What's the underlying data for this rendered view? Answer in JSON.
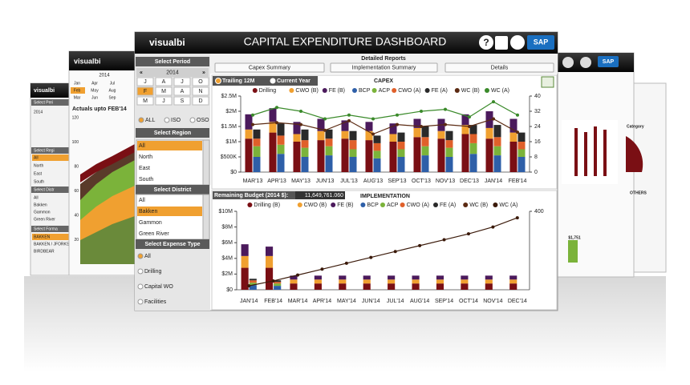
{
  "header": {
    "logo": "visualbi",
    "title": "CAPITAL EXPENDITURE DASHBOARD",
    "help": "?",
    "sap": "SAP"
  },
  "sidebar": {
    "period": {
      "title": "Select Period",
      "prev": "«",
      "year": "2014",
      "next": "»",
      "months": [
        "J",
        "A",
        "J",
        "O",
        "F",
        "M",
        "A",
        "N",
        "M",
        "J",
        "S",
        "D"
      ],
      "options": [
        "ALL",
        "ISO",
        "OSO"
      ]
    },
    "region": {
      "title": "Select Region",
      "items": [
        "All",
        "North",
        "East",
        "South"
      ]
    },
    "district": {
      "title": "Select District",
      "items": [
        "All",
        "Bakken",
        "Gammon",
        "Green River"
      ]
    },
    "expense": {
      "title": "Select Expense Type",
      "items": [
        "All",
        "Drilling",
        "Capital WO",
        "Facilities"
      ]
    }
  },
  "reports": {
    "title": "Detailed Reports",
    "buttons": [
      "Capex Summary",
      "Implementation Summary",
      "Details"
    ]
  },
  "capex_options": [
    "Trailing 12M",
    "Current Year"
  ],
  "remaining_budget": {
    "label": "Remaining Budget (2014 $):",
    "value": "11,649,761.060"
  },
  "chart_data": [
    {
      "type": "bar",
      "title": "CAPEX",
      "categories": [
        "MAR'13",
        "APR'13",
        "MAY'13",
        "JUN'13",
        "JUL'13",
        "AUG'13",
        "SEP'13",
        "OCT'13",
        "NOV'13",
        "DEC'13",
        "JAN'14",
        "FEB'14"
      ],
      "ylim": [
        0,
        2500000
      ],
      "yticks": [
        {
          "value": 0,
          "label": "$0"
        },
        {
          "value": 500000,
          "label": "$500K"
        },
        {
          "value": 1000000,
          "label": "$1M"
        },
        {
          "value": 1500000,
          "label": "$1.5M"
        },
        {
          "value": 2000000,
          "label": "$2M"
        },
        {
          "value": 2500000,
          "label": "$2.5M"
        }
      ],
      "y2lim": [
        0,
        40
      ],
      "y2ticks": [
        0,
        8,
        16,
        24,
        32,
        40
      ],
      "series": [
        {
          "name": "Drilling",
          "color": "#7a0f14",
          "stack": 0,
          "values": [
            1100000,
            1300000,
            1000000,
            1050000,
            1100000,
            1050000,
            1000000,
            1150000,
            1100000,
            1250000,
            1100000,
            1000000
          ]
        },
        {
          "name": "CWO (B)",
          "color": "#f0a030",
          "stack": 0,
          "values": [
            300000,
            350000,
            250000,
            300000,
            250000,
            300000,
            250000,
            300000,
            250000,
            300000,
            350000,
            300000
          ]
        },
        {
          "name": "FE (B)",
          "color": "#4b1a5c",
          "stack": 0,
          "values": [
            500000,
            450000,
            400000,
            400000,
            350000,
            300000,
            350000,
            300000,
            400000,
            350000,
            550000,
            450000
          ]
        },
        {
          "name": "BCP",
          "color": "#2e5fa8",
          "stack": 1,
          "values": [
            500000,
            600000,
            500000,
            550000,
            500000,
            450000,
            500000,
            550000,
            500000,
            600000,
            550000,
            500000
          ]
        },
        {
          "name": "ACP",
          "color": "#7bb33a",
          "stack": 1,
          "values": [
            350000,
            300000,
            300000,
            300000,
            250000,
            250000,
            250000,
            300000,
            300000,
            350000,
            300000,
            250000
          ]
        },
        {
          "name": "CWO (A)",
          "color": "#e0602a",
          "stack": 1,
          "values": [
            250000,
            300000,
            250000,
            250000,
            300000,
            250000,
            250000,
            300000,
            250000,
            300000,
            300000,
            250000
          ]
        },
        {
          "name": "FE (A)",
          "color": "#2a2a2a",
          "stack": 1,
          "values": [
            300000,
            400000,
            350000,
            300000,
            300000,
            250000,
            300000,
            350000,
            300000,
            300000,
            400000,
            300000
          ]
        },
        {
          "name": "WC (B)",
          "color": "#5b2a12",
          "axis": "y2",
          "values": [
            25,
            26,
            25,
            22,
            27,
            20,
            25,
            24,
            25,
            24,
            28,
            21
          ]
        },
        {
          "name": "WC (A)",
          "color": "#3a8a2a",
          "axis": "y2",
          "values": [
            30,
            34,
            32,
            28,
            30,
            28,
            30,
            32,
            33,
            29,
            37,
            30
          ]
        }
      ]
    },
    {
      "type": "bar",
      "title": "IMPLEMENTATION",
      "categories": [
        "JAN'14",
        "FEB'14",
        "MAR'14",
        "APR'14",
        "MAY'14",
        "JUN'14",
        "JUL'14",
        "AUG'14",
        "SEP'14",
        "OCT'14",
        "NOV'14",
        "DEC'14"
      ],
      "ylim": [
        0,
        10000000
      ],
      "yticks": [
        {
          "value": 0,
          "label": "$0"
        },
        {
          "value": 2000000,
          "label": "$2M"
        },
        {
          "value": 4000000,
          "label": "$4M"
        },
        {
          "value": 6000000,
          "label": "$6M"
        },
        {
          "value": 8000000,
          "label": "$8M"
        },
        {
          "value": 10000000,
          "label": "$10M"
        }
      ],
      "y2lim": [
        0,
        400
      ],
      "y2ticks": [
        400
      ],
      "series": [
        {
          "name": "Drilling (B)",
          "color": "#7a0f14",
          "stack": 0,
          "values": [
            2800000,
            2800000,
            800000,
            800000,
            800000,
            800000,
            800000,
            800000,
            800000,
            800000,
            800000,
            800000
          ]
        },
        {
          "name": "CWO (B)",
          "color": "#f0a030",
          "stack": 0,
          "values": [
            1500000,
            1500000,
            500000,
            500000,
            500000,
            500000,
            500000,
            500000,
            500000,
            500000,
            500000,
            500000
          ]
        },
        {
          "name": "FE (B)",
          "color": "#4b1a5c",
          "stack": 0,
          "values": [
            1500000,
            1200000,
            500000,
            500000,
            500000,
            500000,
            500000,
            500000,
            500000,
            500000,
            500000,
            500000
          ]
        },
        {
          "name": "BCP",
          "color": "#2e5fa8",
          "stack": 1,
          "values": [
            600000,
            500000,
            0,
            0,
            0,
            0,
            0,
            0,
            0,
            0,
            0,
            0
          ]
        },
        {
          "name": "ACP",
          "color": "#7bb33a",
          "stack": 1,
          "values": [
            300000,
            300000,
            0,
            0,
            0,
            0,
            0,
            0,
            0,
            0,
            0,
            0
          ]
        },
        {
          "name": "CWO (A)",
          "color": "#e0602a",
          "stack": 1,
          "values": [
            300000,
            200000,
            0,
            0,
            0,
            0,
            0,
            0,
            0,
            0,
            0,
            0
          ]
        },
        {
          "name": "FE (A)",
          "color": "#2a2a2a",
          "stack": 1,
          "values": [
            200000,
            200000,
            0,
            0,
            0,
            0,
            0,
            0,
            0,
            0,
            0,
            0
          ]
        },
        {
          "name": "WC (B)",
          "color": "#5b2a12",
          "axis": "y2",
          "values": [
            null,
            null,
            null,
            null,
            null,
            null,
            null,
            null,
            null,
            null,
            null,
            null
          ]
        },
        {
          "name": "WC (A)",
          "color": "#3b1a0a",
          "axis": "y2",
          "values": [
            20,
            45,
            75,
            105,
            135,
            165,
            195,
            225,
            255,
            285,
            320,
            367
          ]
        }
      ]
    }
  ],
  "side_screens": {
    "left_far": {
      "logo": "visualbi",
      "items": [
        "Select Peri",
        "2014",
        "Select Regi",
        "All",
        "North",
        "East",
        "South",
        "Select Distr",
        "All",
        "Bakken",
        "Gammon",
        "Green River",
        "Select Forma",
        "BAKKEN",
        "BAKKEN / JFORKS",
        "BIRDBEAR"
      ]
    },
    "left_mid": {
      "logo": "visualbi",
      "year": "2014",
      "months": [
        "Jan",
        "Apr",
        "Jul",
        "Feb",
        "May",
        "Aug",
        "Mar",
        "Jun",
        "Sep"
      ],
      "caption": "Actuals upto FEB'14",
      "yticks": [
        120,
        100,
        80,
        60,
        40,
        20
      ]
    },
    "right": {
      "sap": "SAP",
      "legend": "Category",
      "others": "OTHERS",
      "value": "$1,751"
    }
  }
}
